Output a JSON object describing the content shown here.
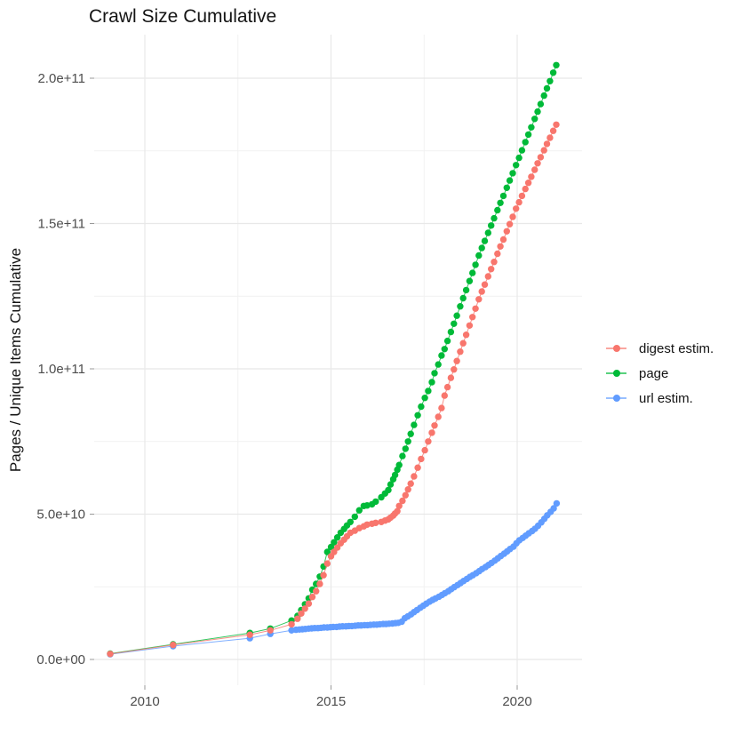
{
  "title": "Crawl Size Cumulative",
  "y_axis_title": "Pages / Unique Items Cumulative",
  "legend": {
    "items": [
      {
        "label": "digest estim.",
        "color": "#F8766D"
      },
      {
        "label": "page",
        "color": "#00BA38"
      },
      {
        "label": "url estim.",
        "color": "#619CFF"
      }
    ]
  },
  "colors": {
    "grid_major": "#E8E8E8",
    "grid_minor": "#F1F1F1",
    "tick_mark": "#999999",
    "tick_label": "#4D4D4D",
    "background": "#FFFFFF",
    "digest_estim": "#F8766D",
    "page": "#00BA38",
    "url_estim": "#619CFF"
  },
  "chart_data": {
    "type": "scatter",
    "title": "Crawl Size Cumulative",
    "xlabel": "",
    "ylabel": "Pages / Unique Items Cumulative",
    "grid": true,
    "legend_position": "right",
    "point_style": "dot+line",
    "value_unit": "pages; series values are in units of 1e10",
    "x_axis": {
      "ticks": [
        2010,
        2015,
        2020
      ],
      "tick_labels": [
        "2010",
        "2015",
        "2020"
      ],
      "minor_ticks": [
        2012.5,
        2017.5
      ],
      "range": [
        2008.6,
        2021.75
      ]
    },
    "y_axis": {
      "ticks_e10": [
        0,
        5,
        10,
        15,
        20
      ],
      "tick_labels": [
        "0.0e+00",
        "5.0e+10",
        "1.0e+11",
        "1.5e+11",
        "2.0e+11"
      ],
      "minor_ticks_e10": [
        2.5,
        7.5,
        12.5,
        17.5
      ],
      "range_e10": [
        -0.9,
        21.5
      ]
    },
    "series": [
      {
        "name": "digest estim.",
        "color": "#F8766D",
        "points": [
          [
            2009.07,
            0.19
          ],
          [
            2010.76,
            0.5
          ],
          [
            2012.82,
            0.85
          ],
          [
            2013.37,
            1.0
          ],
          [
            2013.94,
            1.21
          ],
          [
            2014.1,
            1.4
          ],
          [
            2014.2,
            1.58
          ],
          [
            2014.3,
            1.75
          ],
          [
            2014.4,
            1.92
          ],
          [
            2014.5,
            2.15
          ],
          [
            2014.6,
            2.35
          ],
          [
            2014.7,
            2.6
          ],
          [
            2014.8,
            2.9
          ],
          [
            2014.9,
            3.3
          ],
          [
            2015.0,
            3.55
          ],
          [
            2015.08,
            3.7
          ],
          [
            2015.17,
            3.85
          ],
          [
            2015.26,
            4.0
          ],
          [
            2015.35,
            4.12
          ],
          [
            2015.43,
            4.24
          ],
          [
            2015.52,
            4.36
          ],
          [
            2015.64,
            4.43
          ],
          [
            2015.76,
            4.52
          ],
          [
            2015.88,
            4.58
          ],
          [
            2015.97,
            4.64
          ],
          [
            2016.1,
            4.67
          ],
          [
            2016.2,
            4.7
          ],
          [
            2016.35,
            4.73
          ],
          [
            2016.45,
            4.78
          ],
          [
            2016.54,
            4.82
          ],
          [
            2016.6,
            4.88
          ],
          [
            2016.67,
            4.95
          ],
          [
            2016.72,
            5.02
          ],
          [
            2016.78,
            5.1
          ],
          [
            2016.83,
            5.28
          ],
          [
            2016.92,
            5.46
          ],
          [
            2017.0,
            5.65
          ],
          [
            2017.07,
            5.85
          ],
          [
            2017.14,
            6.05
          ],
          [
            2017.23,
            6.3
          ],
          [
            2017.33,
            6.6
          ],
          [
            2017.42,
            6.9
          ],
          [
            2017.52,
            7.2
          ],
          [
            2017.61,
            7.5
          ],
          [
            2017.71,
            7.8
          ],
          [
            2017.78,
            8.05
          ],
          [
            2017.88,
            8.35
          ],
          [
            2017.97,
            8.65
          ],
          [
            2018.05,
            9.08
          ],
          [
            2018.13,
            9.37
          ],
          [
            2018.22,
            9.69
          ],
          [
            2018.3,
            9.98
          ],
          [
            2018.38,
            10.27
          ],
          [
            2018.47,
            10.59
          ],
          [
            2018.55,
            10.88
          ],
          [
            2018.63,
            11.17
          ],
          [
            2018.72,
            11.49
          ],
          [
            2018.8,
            11.78
          ],
          [
            2018.88,
            12.07
          ],
          [
            2018.97,
            12.39
          ],
          [
            2019.05,
            12.66
          ],
          [
            2019.13,
            12.9
          ],
          [
            2019.22,
            13.18
          ],
          [
            2019.3,
            13.43
          ],
          [
            2019.38,
            13.68
          ],
          [
            2019.47,
            13.96
          ],
          [
            2019.55,
            14.21
          ],
          [
            2019.63,
            14.45
          ],
          [
            2019.72,
            14.73
          ],
          [
            2019.8,
            14.98
          ],
          [
            2019.88,
            15.23
          ],
          [
            2019.97,
            15.51
          ],
          [
            2020.05,
            15.73
          ],
          [
            2020.13,
            15.95
          ],
          [
            2020.22,
            16.19
          ],
          [
            2020.3,
            16.4
          ],
          [
            2020.38,
            16.61
          ],
          [
            2020.47,
            16.85
          ],
          [
            2020.55,
            17.07
          ],
          [
            2020.63,
            17.28
          ],
          [
            2020.72,
            17.52
          ],
          [
            2020.8,
            17.74
          ],
          [
            2020.88,
            17.95
          ],
          [
            2020.97,
            18.19
          ],
          [
            2021.05,
            18.4
          ]
        ]
      },
      {
        "name": "page",
        "color": "#00BA38",
        "points": [
          [
            2009.07,
            0.2
          ],
          [
            2010.76,
            0.52
          ],
          [
            2012.82,
            0.91
          ],
          [
            2013.37,
            1.06
          ],
          [
            2013.94,
            1.34
          ],
          [
            2014.1,
            1.5
          ],
          [
            2014.2,
            1.7
          ],
          [
            2014.3,
            1.9
          ],
          [
            2014.4,
            2.1
          ],
          [
            2014.5,
            2.4
          ],
          [
            2014.6,
            2.6
          ],
          [
            2014.7,
            2.85
          ],
          [
            2014.8,
            3.2
          ],
          [
            2014.9,
            3.7
          ],
          [
            2015.0,
            3.87
          ],
          [
            2015.08,
            4.03
          ],
          [
            2015.17,
            4.2
          ],
          [
            2015.26,
            4.36
          ],
          [
            2015.35,
            4.49
          ],
          [
            2015.43,
            4.61
          ],
          [
            2015.52,
            4.73
          ],
          [
            2015.64,
            4.91
          ],
          [
            2015.76,
            5.13
          ],
          [
            2015.88,
            5.28
          ],
          [
            2015.97,
            5.3
          ],
          [
            2016.1,
            5.34
          ],
          [
            2016.2,
            5.43
          ],
          [
            2016.35,
            5.58
          ],
          [
            2016.45,
            5.71
          ],
          [
            2016.54,
            5.83
          ],
          [
            2016.6,
            6.02
          ],
          [
            2016.67,
            6.2
          ],
          [
            2016.72,
            6.35
          ],
          [
            2016.78,
            6.53
          ],
          [
            2016.83,
            6.69
          ],
          [
            2016.92,
            7.0
          ],
          [
            2017.0,
            7.25
          ],
          [
            2017.07,
            7.5
          ],
          [
            2017.14,
            7.76
          ],
          [
            2017.23,
            8.07
          ],
          [
            2017.33,
            8.4
          ],
          [
            2017.42,
            8.7
          ],
          [
            2017.52,
            9.0
          ],
          [
            2017.61,
            9.24
          ],
          [
            2017.71,
            9.54
          ],
          [
            2017.78,
            9.85
          ],
          [
            2017.88,
            10.15
          ],
          [
            2017.97,
            10.46
          ],
          [
            2018.05,
            10.68
          ],
          [
            2018.13,
            10.96
          ],
          [
            2018.22,
            11.27
          ],
          [
            2018.3,
            11.55
          ],
          [
            2018.38,
            11.83
          ],
          [
            2018.47,
            12.15
          ],
          [
            2018.55,
            12.43
          ],
          [
            2018.63,
            12.71
          ],
          [
            2018.72,
            13.02
          ],
          [
            2018.8,
            13.3
          ],
          [
            2018.88,
            13.58
          ],
          [
            2018.97,
            13.9
          ],
          [
            2019.05,
            14.16
          ],
          [
            2019.13,
            14.4
          ],
          [
            2019.22,
            14.68
          ],
          [
            2019.3,
            14.93
          ],
          [
            2019.38,
            15.18
          ],
          [
            2019.47,
            15.46
          ],
          [
            2019.55,
            15.71
          ],
          [
            2019.63,
            15.95
          ],
          [
            2019.72,
            16.23
          ],
          [
            2019.8,
            16.48
          ],
          [
            2019.88,
            16.73
          ],
          [
            2019.97,
            17.01
          ],
          [
            2020.05,
            17.26
          ],
          [
            2020.13,
            17.52
          ],
          [
            2020.22,
            17.8
          ],
          [
            2020.3,
            18.06
          ],
          [
            2020.38,
            18.31
          ],
          [
            2020.47,
            18.6
          ],
          [
            2020.55,
            18.85
          ],
          [
            2020.63,
            19.11
          ],
          [
            2020.72,
            19.4
          ],
          [
            2020.8,
            19.65
          ],
          [
            2020.88,
            19.9
          ],
          [
            2020.97,
            20.19
          ],
          [
            2021.05,
            20.45
          ]
        ]
      },
      {
        "name": "url estim.",
        "color": "#619CFF",
        "points": [
          [
            2009.07,
            0.18
          ],
          [
            2010.76,
            0.46
          ],
          [
            2012.82,
            0.73
          ],
          [
            2013.37,
            0.88
          ],
          [
            2013.94,
            1.0
          ],
          [
            2014.06,
            1.02
          ],
          [
            2014.15,
            1.03
          ],
          [
            2014.23,
            1.04
          ],
          [
            2014.31,
            1.05
          ],
          [
            2014.4,
            1.06
          ],
          [
            2014.48,
            1.07
          ],
          [
            2014.56,
            1.08
          ],
          [
            2014.65,
            1.08
          ],
          [
            2014.73,
            1.09
          ],
          [
            2014.81,
            1.1
          ],
          [
            2014.9,
            1.1
          ],
          [
            2014.98,
            1.11
          ],
          [
            2015.06,
            1.12
          ],
          [
            2015.15,
            1.12
          ],
          [
            2015.23,
            1.13
          ],
          [
            2015.31,
            1.14
          ],
          [
            2015.4,
            1.14
          ],
          [
            2015.48,
            1.15
          ],
          [
            2015.56,
            1.15
          ],
          [
            2015.65,
            1.16
          ],
          [
            2015.73,
            1.17
          ],
          [
            2015.81,
            1.17
          ],
          [
            2015.9,
            1.18
          ],
          [
            2015.98,
            1.18
          ],
          [
            2016.06,
            1.19
          ],
          [
            2016.15,
            1.2
          ],
          [
            2016.23,
            1.2
          ],
          [
            2016.31,
            1.21
          ],
          [
            2016.4,
            1.22
          ],
          [
            2016.48,
            1.22
          ],
          [
            2016.56,
            1.23
          ],
          [
            2016.65,
            1.24
          ],
          [
            2016.73,
            1.25
          ],
          [
            2016.81,
            1.26
          ],
          [
            2016.9,
            1.3
          ],
          [
            2016.98,
            1.42
          ],
          [
            2017.06,
            1.48
          ],
          [
            2017.15,
            1.55
          ],
          [
            2017.23,
            1.63
          ],
          [
            2017.31,
            1.7
          ],
          [
            2017.4,
            1.78
          ],
          [
            2017.48,
            1.85
          ],
          [
            2017.56,
            1.92
          ],
          [
            2017.65,
            1.99
          ],
          [
            2017.73,
            2.05
          ],
          [
            2017.81,
            2.1
          ],
          [
            2017.9,
            2.16
          ],
          [
            2017.98,
            2.22
          ],
          [
            2018.06,
            2.28
          ],
          [
            2018.15,
            2.35
          ],
          [
            2018.23,
            2.42
          ],
          [
            2018.31,
            2.49
          ],
          [
            2018.4,
            2.56
          ],
          [
            2018.48,
            2.63
          ],
          [
            2018.56,
            2.7
          ],
          [
            2018.65,
            2.77
          ],
          [
            2018.73,
            2.84
          ],
          [
            2018.81,
            2.9
          ],
          [
            2018.9,
            2.97
          ],
          [
            2018.98,
            3.04
          ],
          [
            2019.06,
            3.11
          ],
          [
            2019.15,
            3.18
          ],
          [
            2019.23,
            3.25
          ],
          [
            2019.31,
            3.32
          ],
          [
            2019.4,
            3.4
          ],
          [
            2019.48,
            3.48
          ],
          [
            2019.56,
            3.56
          ],
          [
            2019.65,
            3.64
          ],
          [
            2019.73,
            3.72
          ],
          [
            2019.81,
            3.8
          ],
          [
            2019.9,
            3.88
          ],
          [
            2019.98,
            4.0
          ],
          [
            2020.06,
            4.1
          ],
          [
            2020.15,
            4.18
          ],
          [
            2020.23,
            4.26
          ],
          [
            2020.31,
            4.34
          ],
          [
            2020.4,
            4.42
          ],
          [
            2020.48,
            4.5
          ],
          [
            2020.56,
            4.6
          ],
          [
            2020.65,
            4.72
          ],
          [
            2020.73,
            4.84
          ],
          [
            2020.81,
            4.96
          ],
          [
            2020.9,
            5.08
          ],
          [
            2020.98,
            5.2
          ],
          [
            2021.06,
            5.37
          ]
        ]
      }
    ]
  }
}
